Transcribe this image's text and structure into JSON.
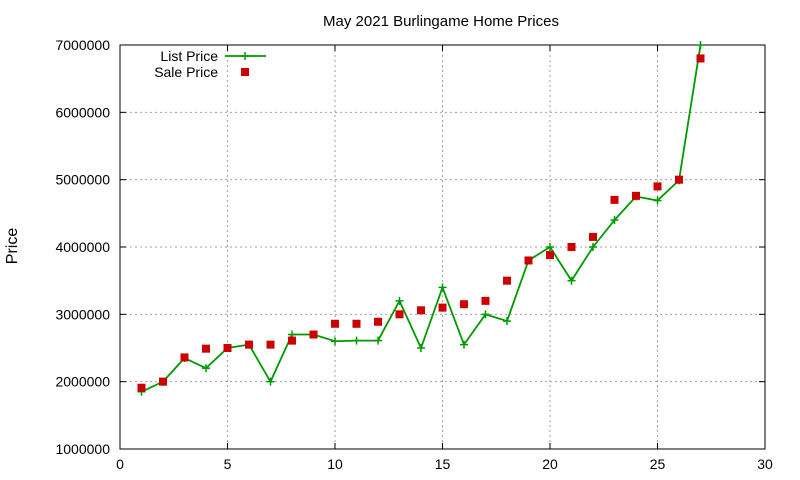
{
  "chart_data": {
    "type": "line",
    "title": "May 2021 Burlingame Home Prices",
    "xlabel": "",
    "ylabel": "Price",
    "xlim": [
      0,
      30
    ],
    "ylim": [
      1000000,
      7000000
    ],
    "x_ticks": [
      0,
      5,
      10,
      15,
      20,
      25,
      30
    ],
    "y_ticks": [
      1000000,
      2000000,
      3000000,
      4000000,
      5000000,
      6000000,
      7000000
    ],
    "grid": true,
    "legend_position": "top-left",
    "series": [
      {
        "name": "List Price",
        "style": "line-plus",
        "color": "#009900",
        "x": [
          1,
          2,
          3,
          4,
          5,
          6,
          7,
          8,
          9,
          10,
          11,
          12,
          13,
          14,
          15,
          16,
          17,
          18,
          19,
          20,
          21,
          22,
          23,
          24,
          25,
          26,
          27
        ],
        "y": [
          1850000,
          2000000,
          2350000,
          2200000,
          2500000,
          2550000,
          2000000,
          2700000,
          2700000,
          2600000,
          2610000,
          2610000,
          3200000,
          2500000,
          3400000,
          2550000,
          3000000,
          2900000,
          3800000,
          4000000,
          3500000,
          4000000,
          4400000,
          4750000,
          4690000,
          4990000,
          7000000
        ]
      },
      {
        "name": "Sale Price",
        "style": "square-points",
        "color": "#cc0000",
        "x": [
          1,
          2,
          3,
          4,
          5,
          6,
          7,
          8,
          9,
          10,
          11,
          12,
          13,
          14,
          15,
          16,
          17,
          18,
          19,
          20,
          21,
          22,
          23,
          24,
          25,
          26,
          27
        ],
        "y": [
          1910000,
          2000000,
          2360000,
          2490000,
          2500000,
          2550000,
          2550000,
          2610000,
          2700000,
          2860000,
          2860000,
          2890000,
          3000000,
          3060000,
          3100000,
          3150000,
          3200000,
          3500000,
          3800000,
          3880000,
          4000000,
          4150000,
          4700000,
          4760000,
          4900000,
          5000000,
          6800000
        ]
      }
    ]
  }
}
